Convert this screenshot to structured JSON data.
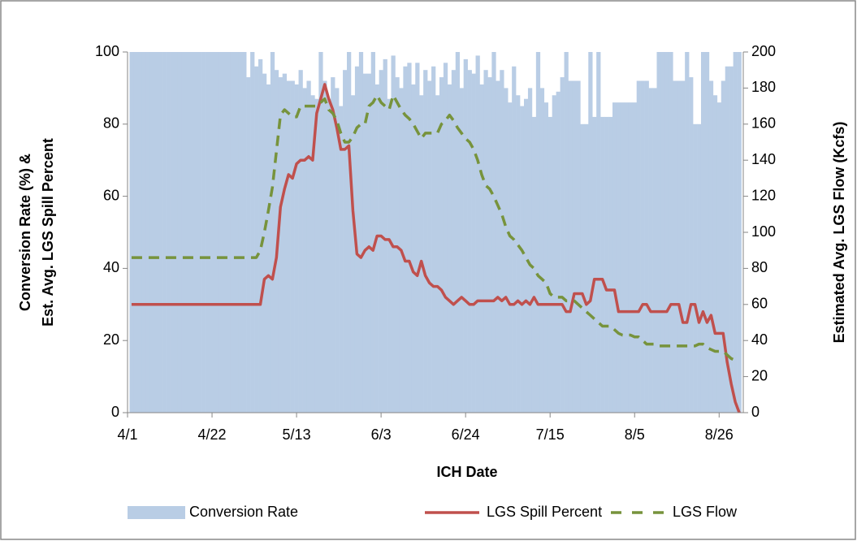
{
  "chart_data": {
    "type": "combo",
    "xlabel": "ICH Date",
    "ylabel": [
      "Conversion Rate (%) &",
      "Est. Avg. LGS Spill Percent"
    ],
    "y2label": "Estimated Avg. LGS Flow (Kcfs)",
    "xlim": [
      0,
      153
    ],
    "xticks": [
      {
        "value": 0,
        "label": "4/1"
      },
      {
        "value": 21,
        "label": "4/22"
      },
      {
        "value": 42,
        "label": "5/13"
      },
      {
        "value": 63,
        "label": "6/3"
      },
      {
        "value": 84,
        "label": "6/24"
      },
      {
        "value": 105,
        "label": "7/15"
      },
      {
        "value": 126,
        "label": "8/5"
      },
      {
        "value": 147,
        "label": "8/26"
      }
    ],
    "ylim": [
      0,
      100
    ],
    "yticks": [
      0,
      20,
      40,
      60,
      80,
      100
    ],
    "y2lim": [
      0,
      200
    ],
    "y2ticks": [
      0,
      20,
      40,
      60,
      80,
      100,
      120,
      140,
      160,
      180,
      200
    ],
    "legend": "bottom",
    "x": [
      1,
      2,
      3,
      4,
      5,
      6,
      7,
      8,
      9,
      10,
      11,
      12,
      13,
      14,
      15,
      16,
      17,
      18,
      19,
      20,
      21,
      22,
      23,
      24,
      25,
      26,
      27,
      28,
      29,
      30,
      31,
      32,
      33,
      34,
      35,
      36,
      37,
      38,
      39,
      40,
      41,
      42,
      43,
      44,
      45,
      46,
      47,
      48,
      49,
      50,
      51,
      52,
      53,
      54,
      55,
      56,
      57,
      58,
      59,
      60,
      61,
      62,
      63,
      64,
      65,
      66,
      67,
      68,
      69,
      70,
      71,
      72,
      73,
      74,
      75,
      76,
      77,
      78,
      79,
      80,
      81,
      82,
      83,
      84,
      85,
      86,
      87,
      88,
      89,
      90,
      91,
      92,
      93,
      94,
      95,
      96,
      97,
      98,
      99,
      100,
      101,
      102,
      103,
      104,
      105,
      106,
      107,
      108,
      109,
      110,
      111,
      112,
      113,
      114,
      115,
      116,
      117,
      118,
      119,
      120,
      121,
      122,
      123,
      124,
      125,
      126,
      127,
      128,
      129,
      130,
      131,
      132,
      133,
      134,
      135,
      136,
      137,
      138,
      139,
      140,
      141,
      142,
      143,
      144,
      145,
      146,
      147,
      148,
      149,
      150,
      151,
      152
    ],
    "series": [
      {
        "name": "Conversion Rate",
        "type": "bar",
        "color": "#b9cde5",
        "values": [
          100,
          100,
          100,
          100,
          100,
          100,
          100,
          100,
          100,
          100,
          100,
          100,
          100,
          100,
          100,
          100,
          100,
          100,
          100,
          100,
          100,
          100,
          100,
          100,
          100,
          100,
          100,
          100,
          100,
          93,
          100,
          96,
          98,
          94,
          91,
          100,
          95,
          93,
          94,
          92,
          92,
          91,
          95,
          90,
          92,
          88,
          87,
          100,
          92,
          87,
          93,
          90,
          85,
          95,
          100,
          88,
          96,
          100,
          94,
          94,
          100,
          91,
          95,
          98,
          87,
          99,
          93,
          90,
          96,
          97,
          91,
          97,
          88,
          95,
          92,
          96,
          88,
          93,
          97,
          91,
          95,
          100,
          90,
          98,
          95,
          94,
          99,
          91,
          95,
          93,
          100,
          92,
          95,
          90,
          86,
          96,
          88,
          85,
          87,
          90,
          82,
          100,
          90,
          86,
          82,
          88,
          89,
          93,
          100,
          92,
          92,
          92,
          80,
          80,
          100,
          82,
          100,
          82,
          82,
          82,
          86,
          86,
          86,
          86,
          86,
          86,
          92,
          92,
          92,
          90,
          90,
          100,
          100,
          100,
          100,
          92,
          92,
          92,
          100,
          93,
          80,
          80,
          100,
          100,
          92,
          88,
          86,
          92,
          96,
          96,
          100,
          100
        ]
      },
      {
        "name": "LGS Spill Percent",
        "type": "line",
        "color": "#c0504d",
        "line_style": "solid",
        "values": [
          30,
          30,
          30,
          30,
          30,
          30,
          30,
          30,
          30,
          30,
          30,
          30,
          30,
          30,
          30,
          30,
          30,
          30,
          30,
          30,
          30,
          30,
          30,
          30,
          30,
          30,
          30,
          30,
          30,
          30,
          30,
          30,
          30,
          37,
          38,
          37,
          43,
          57,
          62,
          66,
          65,
          69,
          70,
          70,
          71,
          70,
          83,
          87,
          91,
          87,
          84,
          79,
          73,
          73,
          74,
          56,
          44,
          43,
          45,
          46,
          45,
          49,
          49,
          48,
          48,
          46,
          46,
          45,
          42,
          42,
          39,
          38,
          42,
          38,
          36,
          35,
          35,
          34,
          32,
          31,
          30,
          31,
          32,
          31,
          30,
          30,
          31,
          31,
          31,
          31,
          31,
          32,
          31,
          32,
          30,
          30,
          31,
          30,
          31,
          30,
          32,
          30,
          30,
          30,
          30,
          30,
          30,
          30,
          28,
          28,
          33,
          33,
          33,
          30,
          31,
          37,
          37,
          37,
          34,
          34,
          34,
          28,
          28,
          28,
          28,
          28,
          28,
          30,
          30,
          28,
          28,
          28,
          28,
          28,
          30,
          30,
          30,
          25,
          25,
          30,
          30,
          25,
          28,
          25,
          27,
          22,
          22,
          22,
          14,
          8,
          3,
          0
        ]
      },
      {
        "name": "LGS Flow",
        "type": "line",
        "color": "#77933c",
        "line_style": "dashed",
        "axis": "y2",
        "values": [
          86,
          86,
          86,
          86,
          86,
          86,
          86,
          86,
          86,
          86,
          86,
          86,
          86,
          86,
          86,
          86,
          86,
          86,
          86,
          86,
          86,
          86,
          86,
          86,
          86,
          86,
          86,
          86,
          86,
          86,
          86,
          86,
          90,
          100,
          112,
          125,
          145,
          165,
          168,
          166,
          164,
          164,
          170,
          170,
          170,
          170,
          170,
          172,
          174,
          168,
          166,
          162,
          155,
          150,
          150,
          153,
          158,
          160,
          160,
          170,
          172,
          176,
          172,
          170,
          168,
          176,
          172,
          168,
          165,
          163,
          160,
          156,
          152,
          155,
          155,
          155,
          155,
          160,
          162,
          165,
          162,
          158,
          155,
          152,
          150,
          146,
          140,
          132,
          126,
          124,
          120,
          115,
          110,
          103,
          98,
          96,
          93,
          90,
          86,
          82,
          80,
          76,
          74,
          72,
          66,
          64,
          64,
          64,
          62,
          62,
          62,
          60,
          58,
          56,
          54,
          52,
          50,
          48,
          48,
          48,
          46,
          44,
          43,
          43,
          43,
          42,
          42,
          40,
          38,
          38,
          38,
          37,
          37,
          37,
          37,
          37,
          37,
          37,
          37,
          37,
          37,
          38,
          38,
          36,
          35,
          34,
          34,
          34,
          32,
          30,
          29,
          29
        ]
      }
    ]
  }
}
